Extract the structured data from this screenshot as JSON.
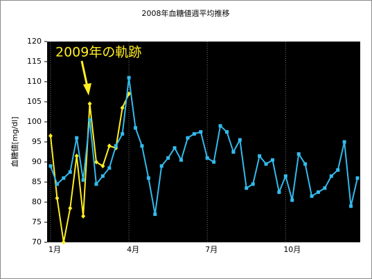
{
  "chart_data": {
    "type": "line",
    "title": "2008年血糖値週平均推移",
    "y_label": "血糖値[mg/dl]",
    "annotation": "2009年の軌跡",
    "categories": [
      "1月",
      null,
      null,
      null,
      null,
      null,
      null,
      null,
      null,
      null,
      null,
      null,
      "4月",
      null,
      null,
      null,
      null,
      null,
      null,
      null,
      null,
      null,
      null,
      null,
      "7月",
      null,
      null,
      null,
      null,
      null,
      null,
      null,
      null,
      null,
      null,
      null,
      "10月",
      null,
      null,
      null,
      null,
      null,
      null,
      null,
      null,
      null,
      null,
      null
    ],
    "series": [
      {
        "name": "2008",
        "color": "#33bbee",
        "marker": "square",
        "values": [
          89,
          84.5,
          86,
          87.5,
          96,
          85.5,
          100.5,
          84.5,
          86.5,
          88.5,
          94,
          97,
          111,
          98.5,
          94,
          86,
          77,
          89,
          91,
          93.5,
          90.5,
          96,
          97,
          97.5,
          91,
          90,
          99,
          97.5,
          92.5,
          95.5,
          83.5,
          84.5,
          91.5,
          89.5,
          90.5,
          82.5,
          86.5,
          80.5,
          92,
          89.5,
          81.5,
          82.5,
          83.5,
          86.5,
          88,
          95,
          79,
          86
        ]
      },
      {
        "name": "2009",
        "color": "#ffee22",
        "marker": "diamond",
        "values": [
          96.5,
          81,
          70,
          78.5,
          91.5,
          76.5,
          104.5,
          90,
          89,
          94,
          93.5,
          103.5,
          107,
          null,
          null,
          null,
          null,
          null,
          null,
          null,
          null,
          null,
          null,
          null,
          null,
          null,
          null,
          null,
          null,
          null,
          null,
          null,
          null,
          null,
          null,
          null,
          null,
          null,
          null,
          null,
          null,
          null,
          null,
          null,
          null,
          null,
          null,
          null
        ]
      }
    ],
    "ylim": [
      70,
      120
    ],
    "yticks": [
      70,
      75,
      80,
      85,
      90,
      95,
      100,
      105,
      110,
      115,
      120
    ],
    "grid": true
  }
}
